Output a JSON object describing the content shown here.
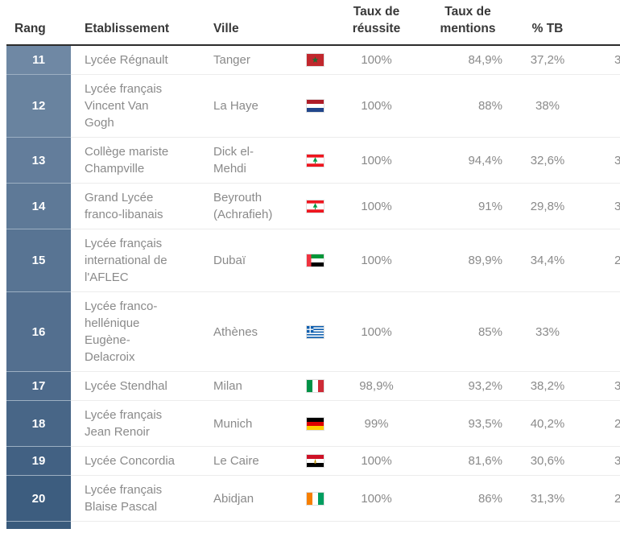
{
  "table": {
    "columns": {
      "rang": "Rang",
      "etablissement": "Etablissement",
      "ville": "Ville",
      "reussite": "Taux de réussite",
      "mentions": "Taux de mentions",
      "tb": "% TB"
    },
    "rows": [
      {
        "rang": "11",
        "etablissement": "Lycée Régnault",
        "ville": "Tanger",
        "flag": "morocco",
        "reussite": "100%",
        "mentions": "84,9%",
        "tb": "37,2%",
        "next_col_partial": "3",
        "rank_color": "#6F88A4"
      },
      {
        "rang": "12",
        "etablissement": "Lycée français Vincent Van Gogh",
        "ville": "La Haye",
        "flag": "netherlands",
        "reussite": "100%",
        "mentions": "88%",
        "tb": "38%",
        "next_col_partial": "",
        "rank_color": "#69839F"
      },
      {
        "rang": "13",
        "etablissement": "Collège mariste Champville",
        "ville": "Dick el-Mehdi",
        "flag": "lebanon",
        "reussite": "100%",
        "mentions": "94,4%",
        "tb": "32,6%",
        "next_col_partial": "3",
        "rank_color": "#637D9B"
      },
      {
        "rang": "14",
        "etablissement": "Grand Lycée franco-libanais",
        "ville": "Beyrouth (Achrafieh)",
        "flag": "lebanon",
        "reussite": "100%",
        "mentions": "91%",
        "tb": "29,8%",
        "next_col_partial": "3",
        "rank_color": "#5E7997"
      },
      {
        "rang": "15",
        "etablissement": "Lycée français international de l'AFLEC",
        "ville": "Dubaï",
        "flag": "uae",
        "reussite": "100%",
        "mentions": "89,9%",
        "tb": "34,4%",
        "next_col_partial": "2",
        "rank_color": "#587493"
      },
      {
        "rang": "16",
        "etablissement": "Lycée franco-hellénique Eugène-Delacroix",
        "ville": "Athènes",
        "flag": "greece",
        "reussite": "100%",
        "mentions": "85%",
        "tb": "33%",
        "next_col_partial": "",
        "rank_color": "#536F8F"
      },
      {
        "rang": "17",
        "etablissement": "Lycée Stendhal",
        "ville": "Milan",
        "flag": "italy",
        "reussite": "98,9%",
        "mentions": "93,2%",
        "tb": "38,2%",
        "next_col_partial": "3",
        "rank_color": "#4D6A8B"
      },
      {
        "rang": "18",
        "etablissement": "Lycée français Jean Renoir",
        "ville": "Munich",
        "flag": "germany",
        "reussite": "99%",
        "mentions": "93,5%",
        "tb": "40,2%",
        "next_col_partial": "2",
        "rank_color": "#486687"
      },
      {
        "rang": "19",
        "etablissement": "Lycée Concordia",
        "ville": "Le Caire",
        "flag": "egypt",
        "reussite": "100%",
        "mentions": "81,6%",
        "tb": "30,6%",
        "next_col_partial": "3",
        "rank_color": "#426183"
      },
      {
        "rang": "20",
        "etablissement": "Lycée français Blaise Pascal",
        "ville": "Abidjan",
        "flag": "ivory-coast",
        "reussite": "100%",
        "mentions": "86%",
        "tb": "31,3%",
        "next_col_partial": "2",
        "rank_color": "#3D5D7F"
      }
    ],
    "next_row_partial": {
      "rank_color": "#395A7C"
    }
  },
  "flags": {
    "morocco": {
      "kind": "plain",
      "bg": "#C1272D",
      "emblem": "star",
      "emblem_color": "#1F6B34"
    },
    "netherlands": {
      "kind": "h",
      "stripes": [
        "#AE1C28",
        "#FFFFFF",
        "#21468B"
      ]
    },
    "lebanon": {
      "kind": "h",
      "stripes": [
        "#EE161F",
        "#FFFFFF",
        "#EE161F"
      ],
      "ratios": [
        1,
        2,
        1
      ],
      "emblem": "cedar",
      "emblem_color": "#009A44"
    },
    "uae": {
      "kind": "uae",
      "band": "#EF3340",
      "stripes": [
        "#009639",
        "#FFFFFF",
        "#000000"
      ]
    },
    "greece": {
      "kind": "greece",
      "blue": "#0D5EAF",
      "white": "#FFFFFF"
    },
    "italy": {
      "kind": "v",
      "stripes": [
        "#009246",
        "#FFFFFF",
        "#CE2B37"
      ]
    },
    "germany": {
      "kind": "h",
      "stripes": [
        "#000000",
        "#DD0000",
        "#FFCE00"
      ]
    },
    "egypt": {
      "kind": "h",
      "stripes": [
        "#CE1126",
        "#FFFFFF",
        "#000000"
      ],
      "emblem": "eagle",
      "emblem_color": "#C09300"
    },
    "ivory-coast": {
      "kind": "v",
      "stripes": [
        "#F77F00",
        "#FFFFFF",
        "#009E60"
      ]
    }
  },
  "colors": {
    "header_text": "#383838",
    "header_border": "#2c2c2c",
    "body_text": "#8a8a8a",
    "row_separator": "#ececec",
    "rank_text": "#ffffff"
  }
}
